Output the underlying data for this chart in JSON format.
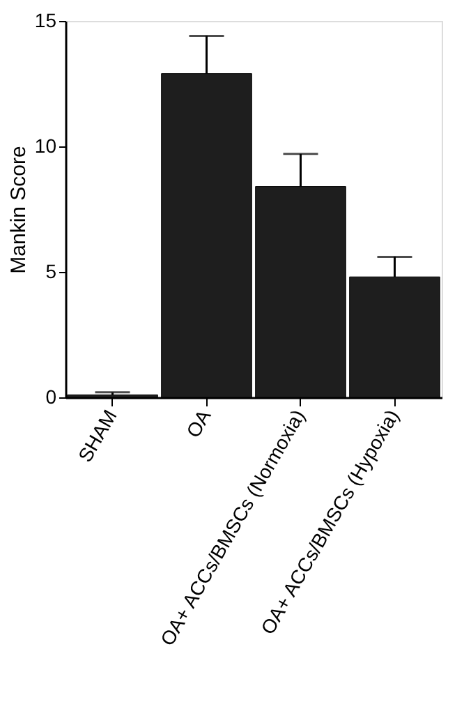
{
  "chart_data": {
    "type": "bar",
    "ylabel": "Mankin Score",
    "categories": [
      "SHAM",
      "OA",
      "OA+ ACCs/BMSCs (Normoxia)",
      "OA+ ACCs/BMSCs (Hypoxia)"
    ],
    "values": [
      0.1,
      12.9,
      8.4,
      4.8
    ],
    "errors": [
      0.1,
      1.5,
      1.3,
      0.8
    ],
    "color": "#1e1e1e",
    "ylim": [
      0,
      15
    ],
    "yticks": [
      0,
      5,
      10,
      15
    ],
    "grid": false
  }
}
